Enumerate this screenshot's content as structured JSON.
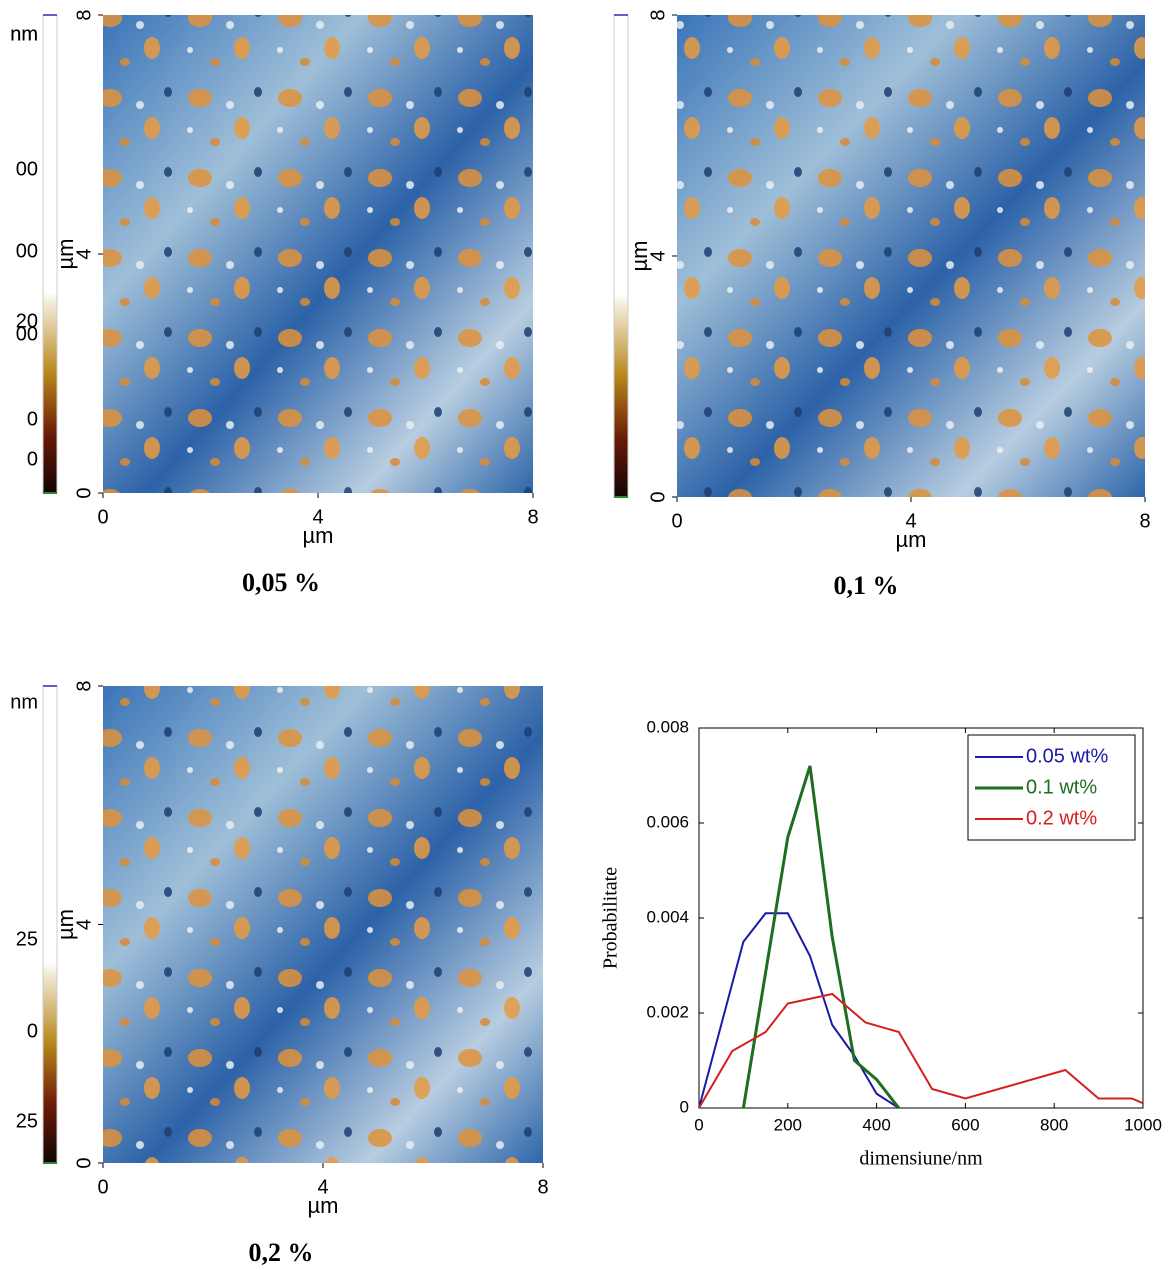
{
  "afm_panels": [
    {
      "caption": "0,05 %",
      "xlabel": "µm",
      "ylabel": "µm",
      "xlim": [
        0,
        8
      ],
      "xticks": [
        0,
        4,
        8
      ],
      "ylim": [
        0,
        8
      ],
      "yticks": [
        0,
        4,
        8
      ],
      "colorbar_labels": [
        "nm",
        "20",
        "0"
      ]
    },
    {
      "caption": "0,1 %",
      "xlabel": "µm",
      "ylabel": "µm",
      "xlim": [
        0,
        8
      ],
      "xticks": [
        0,
        4,
        8
      ],
      "ylim": [
        0,
        8
      ],
      "yticks": [
        0,
        4,
        8
      ],
      "colorbar_labels": [
        "nm",
        "00",
        "00",
        "00",
        "0"
      ]
    },
    {
      "caption": "0,2 %",
      "xlabel": "µm",
      "ylabel": "µm",
      "xlim": [
        0,
        8
      ],
      "xticks": [
        0,
        4,
        8
      ],
      "ylim": [
        0,
        8
      ],
      "yticks": [
        0,
        4,
        8
      ],
      "colorbar_labels": [
        "nm",
        "25",
        "0",
        "25"
      ]
    }
  ],
  "chart_data": {
    "type": "line",
    "xlabel": "dimensiune/nm",
    "ylabel": "Probabilitate",
    "xlim": [
      0,
      1000
    ],
    "xticks": [
      0,
      200,
      400,
      600,
      800,
      1000
    ],
    "ylim": [
      0,
      0.008
    ],
    "yticks": [
      0,
      0.002,
      0.004,
      0.006,
      0.008
    ],
    "legend": "upper right",
    "series": [
      {
        "name": "0.05 wt%",
        "color": "#1a1aa8",
        "x": [
          0,
          100,
          150,
          200,
          250,
          300,
          350,
          400,
          450
        ],
        "values": [
          0,
          0.0035,
          0.0041,
          0.0041,
          0.0032,
          0.00175,
          0.0011,
          0.0003,
          0
        ]
      },
      {
        "name": "0.1 wt%",
        "color": "#1e6e1e",
        "x": [
          100,
          200,
          250,
          300,
          350,
          400,
          450
        ],
        "values": [
          0,
          0.0057,
          0.0072,
          0.0036,
          0.001,
          0.0006,
          0
        ]
      },
      {
        "name": "0.2 wt%",
        "color": "#d42020",
        "x": [
          0,
          75,
          150,
          200,
          300,
          375,
          450,
          525,
          600,
          825,
          900,
          975,
          1000
        ],
        "values": [
          0,
          0.0012,
          0.0016,
          0.0022,
          0.0024,
          0.0018,
          0.0016,
          0.0004,
          0.0002,
          0.0008,
          0.0002,
          0.0002,
          0.0001
        ]
      }
    ]
  }
}
